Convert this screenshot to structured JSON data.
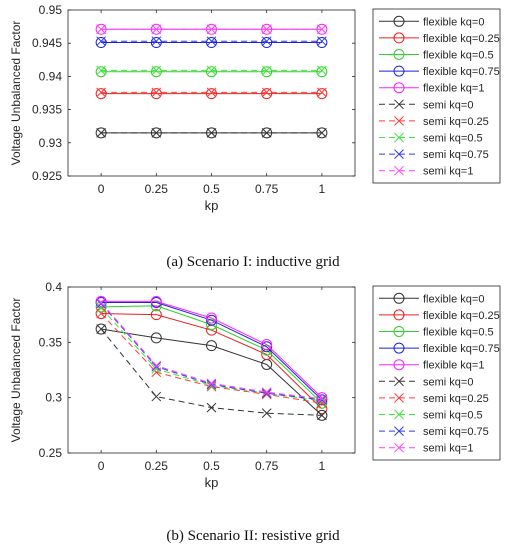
{
  "colors": {
    "flexible kq=0": "#333333",
    "flexible kq=0.25": "#e8201e",
    "flexible kq=0.5": "#2fd12a",
    "flexible kq=0.75": "#1c23d8",
    "flexible kq=1": "#ff20ff",
    "semi kq=0": "#333333",
    "semi kq=0.25": "#ff3a3a",
    "semi kq=0.5": "#3de63a",
    "semi kq=0.75": "#2f3be6",
    "semi kq=1": "#ff40ff"
  },
  "chart_data": [
    {
      "type": "line",
      "x": [
        0,
        0.25,
        0.5,
        0.75,
        1
      ],
      "xticks": [
        "0",
        "0.25",
        "0.5",
        "0.75",
        "1"
      ],
      "xlim": [
        -0.15,
        1.15
      ],
      "ylim": [
        0.925,
        0.95
      ],
      "yticks": [
        "0.925",
        "0.93",
        "0.935",
        "0.94",
        "0.945",
        "0.95"
      ],
      "xlabel": "kp",
      "ylabel": "Voltage Unbalanced Factor",
      "grid": false,
      "legend_position": "right",
      "caption": "(a) Scenario I: inductive grid",
      "series": [
        {
          "name": "flexible kq=0",
          "style": "solid",
          "marker": "circle",
          "values": [
            0.9315,
            0.9315,
            0.9315,
            0.9315,
            0.9315
          ]
        },
        {
          "name": "flexible kq=0.25",
          "style": "solid",
          "marker": "circle",
          "values": [
            0.9374,
            0.9374,
            0.9374,
            0.9374,
            0.9374
          ]
        },
        {
          "name": "flexible kq=0.5",
          "style": "solid",
          "marker": "circle",
          "values": [
            0.9407,
            0.9407,
            0.9407,
            0.9407,
            0.9407
          ]
        },
        {
          "name": "flexible kq=0.75",
          "style": "solid",
          "marker": "circle",
          "values": [
            0.9451,
            0.9451,
            0.9451,
            0.9451,
            0.9451
          ]
        },
        {
          "name": "flexible kq=1",
          "style": "solid",
          "marker": "circle",
          "values": [
            0.9471,
            0.9471,
            0.9471,
            0.9471,
            0.9471
          ]
        },
        {
          "name": "semi kq=0",
          "style": "dashed",
          "marker": "x",
          "values": [
            0.9315,
            0.9315,
            0.9315,
            0.9315,
            0.9315
          ]
        },
        {
          "name": "semi kq=0.25",
          "style": "dashed",
          "marker": "x",
          "values": [
            0.9376,
            0.9376,
            0.9376,
            0.9376,
            0.9376
          ]
        },
        {
          "name": "semi kq=0.5",
          "style": "dashed",
          "marker": "x",
          "values": [
            0.9409,
            0.9409,
            0.9409,
            0.9409,
            0.9409
          ]
        },
        {
          "name": "semi kq=0.75",
          "style": "dashed",
          "marker": "x",
          "values": [
            0.9453,
            0.9453,
            0.9453,
            0.9453,
            0.9453
          ]
        },
        {
          "name": "semi kq=1",
          "style": "dashed",
          "marker": "x",
          "values": [
            0.9471,
            0.9471,
            0.9471,
            0.9471,
            0.9471
          ]
        }
      ]
    },
    {
      "type": "line",
      "x": [
        0,
        0.25,
        0.5,
        0.75,
        1
      ],
      "xticks": [
        "0",
        "0.25",
        "0.5",
        "0.75",
        "1"
      ],
      "xlim": [
        -0.15,
        1.15
      ],
      "ylim": [
        0.25,
        0.4
      ],
      "yticks": [
        "0.25",
        "0.3",
        "0.35",
        "0.4"
      ],
      "xlabel": "kp",
      "ylabel": "Voltage Unbalanced Factor",
      "grid": false,
      "legend_position": "right",
      "caption": "(b) Scenario II: resistive grid",
      "series": [
        {
          "name": "flexible kq=0",
          "style": "solid",
          "marker": "circle",
          "values": [
            0.362,
            0.354,
            0.347,
            0.33,
            0.284
          ]
        },
        {
          "name": "flexible kq=0.25",
          "style": "solid",
          "marker": "circle",
          "values": [
            0.376,
            0.375,
            0.361,
            0.339,
            0.29
          ]
        },
        {
          "name": "flexible kq=0.5",
          "style": "solid",
          "marker": "circle",
          "values": [
            0.382,
            0.383,
            0.366,
            0.343,
            0.295
          ]
        },
        {
          "name": "flexible kq=0.75",
          "style": "solid",
          "marker": "circle",
          "values": [
            0.386,
            0.386,
            0.37,
            0.346,
            0.298
          ]
        },
        {
          "name": "flexible kq=1",
          "style": "solid",
          "marker": "circle",
          "values": [
            0.387,
            0.387,
            0.372,
            0.348,
            0.3
          ]
        },
        {
          "name": "semi kq=0",
          "style": "dashed",
          "marker": "x",
          "values": [
            0.362,
            0.301,
            0.291,
            0.286,
            0.284
          ]
        },
        {
          "name": "semi kq=0.25",
          "style": "dashed",
          "marker": "x",
          "values": [
            0.376,
            0.323,
            0.31,
            0.303,
            0.295
          ]
        },
        {
          "name": "semi kq=0.5",
          "style": "dashed",
          "marker": "x",
          "values": [
            0.381,
            0.326,
            0.311,
            0.304,
            0.297
          ]
        },
        {
          "name": "semi kq=0.75",
          "style": "dashed",
          "marker": "x",
          "values": [
            0.385,
            0.328,
            0.312,
            0.304,
            0.298
          ]
        },
        {
          "name": "semi kq=1",
          "style": "dashed",
          "marker": "x",
          "values": [
            0.386,
            0.329,
            0.313,
            0.305,
            0.299
          ]
        }
      ]
    }
  ]
}
